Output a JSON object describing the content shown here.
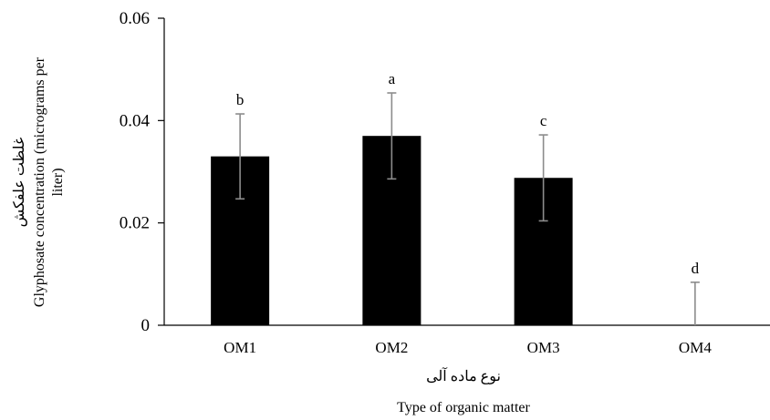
{
  "chart_data": {
    "type": "bar",
    "categories": [
      "OM1",
      "OM2",
      "OM3",
      "OM4"
    ],
    "values": [
      0.033,
      0.037,
      0.0288,
      0.0
    ],
    "error_bars": [
      0.0083,
      0.0084,
      0.0084,
      0.0084
    ],
    "significance_letters": [
      "b",
      "a",
      "c",
      "d"
    ],
    "yticks": [
      "0",
      "0.02",
      "0.04",
      "0.06"
    ],
    "ylim": [
      0,
      0.06
    ],
    "ylabel_fa": "غلظت علفکش",
    "ylabel_line1": "Glyphosate concentration (micrograms per",
    "ylabel_line2": "liter)",
    "xlabel_fa": "نوع ماده آلی",
    "xlabel": "Type of organic matter",
    "grid": false,
    "bar_color": "#000000",
    "error_bar_color": "#8c8c8c"
  }
}
